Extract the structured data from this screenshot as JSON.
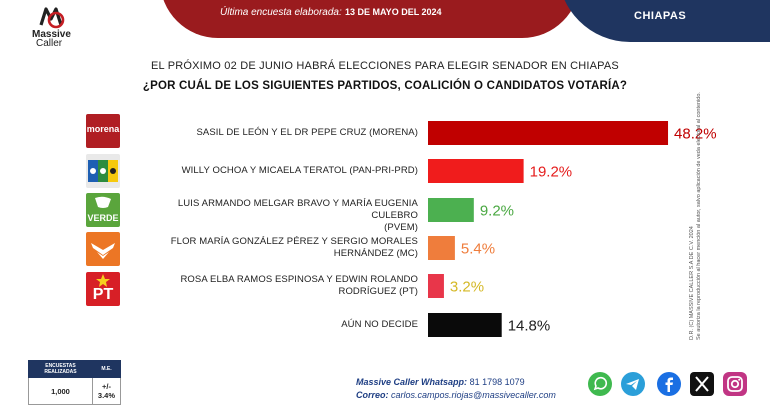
{
  "header": {
    "survey_label": "Última encuesta elaborada:",
    "survey_date": "13 DE MAYO DEL 2024",
    "state": "CHIAPAS"
  },
  "brand": {
    "name": "Massive",
    "sub": "Caller"
  },
  "question": {
    "intro": "EL PRÓXIMO 02 DE JUNIO HABRÁ ELECCIONES PARA ELEGIR SENADOR EN CHIAPAS",
    "main": "¿POR CUÁL DE LOS SIGUIENTES PARTIDOS, COALICIÓN O CANDIDATOS VOTARÍA?"
  },
  "logos": {
    "morena": "morena",
    "verde": "VERDE",
    "pt": "PT"
  },
  "chart_data": {
    "type": "bar",
    "orientation": "horizontal",
    "categories": [
      "SASIL DE LEÓN Y EL DR PEPE CRUZ (MORENA)",
      "WILLY OCHOA Y MICAELA TERATOL (PAN-PRI-PRD)",
      "LUIS ARMANDO MELGAR BRAVO Y MARÍA EUGENIA CULEBRO (PVEM)",
      "FLOR MARÍA GONZÁLEZ PÉREZ Y SERGIO MORALES HERNÁNDEZ (MC)",
      "ROSA ELBA RAMOS ESPINOSA  Y EDWIN ROLANDO RODRÍGUEZ (PT)",
      "AÚN NO DECIDE"
    ],
    "category_lines": [
      [
        "SASIL DE LEÓN Y EL DR PEPE CRUZ (MORENA)"
      ],
      [
        "WILLY OCHOA Y MICAELA TERATOL (PAN-PRI-PRD)"
      ],
      [
        "LUIS ARMANDO MELGAR BRAVO Y MARÍA EUGENIA CULEBRO",
        "(PVEM)"
      ],
      [
        "FLOR MARÍA GONZÁLEZ PÉREZ Y SERGIO MORALES",
        "HERNÁNDEZ (MC)"
      ],
      [
        "ROSA ELBA RAMOS ESPINOSA  Y EDWIN ROLANDO",
        "RODRÍGUEZ (PT)"
      ],
      [
        "AÚN NO DECIDE"
      ]
    ],
    "values": [
      48.2,
      19.2,
      9.2,
      5.4,
      3.2,
      14.8
    ],
    "value_labels": [
      "48.2%",
      "19.2%",
      "9.2%",
      "5.4%",
      "3.2%",
      "14.8%"
    ],
    "colors": [
      "#c00000",
      "#f01c1c",
      "#4cb050",
      "#ef7d3c",
      "#e8364a",
      "#0a0a0a"
    ],
    "label_colors": [
      "#c00000",
      "#e51c1c",
      "#4aa842",
      "#ef7d3c",
      "#d4b826",
      "#222222"
    ],
    "title": "",
    "xlabel": "",
    "ylabel": "",
    "xlim": [
      0,
      50
    ],
    "grid": false,
    "legend": "none"
  },
  "stats": {
    "col1_header": "ENCUESTAS REALIZADAS",
    "col2_header": "M.E.",
    "surveys": "1,000",
    "margin": "+/- 3.4%"
  },
  "contact": {
    "whatsapp_label": "Massive Caller Whatsapp:",
    "whatsapp_number": "81 1798 1079",
    "mail_label": "Correo:",
    "mail_address": "carlos.campos.riojas@massivecaller.com"
  },
  "social": [
    "whatsapp-icon",
    "telegram-icon",
    "facebook-icon",
    "x-icon",
    "instagram-icon"
  ],
  "side_note": {
    "line1": "D.R. (C) MASSIVE CALLER S.A DE C.V. 2024",
    "line2": "Se autoriza la reproducción al hacer mención al autor, salvo aplicación de veda electoral al contenido."
  }
}
